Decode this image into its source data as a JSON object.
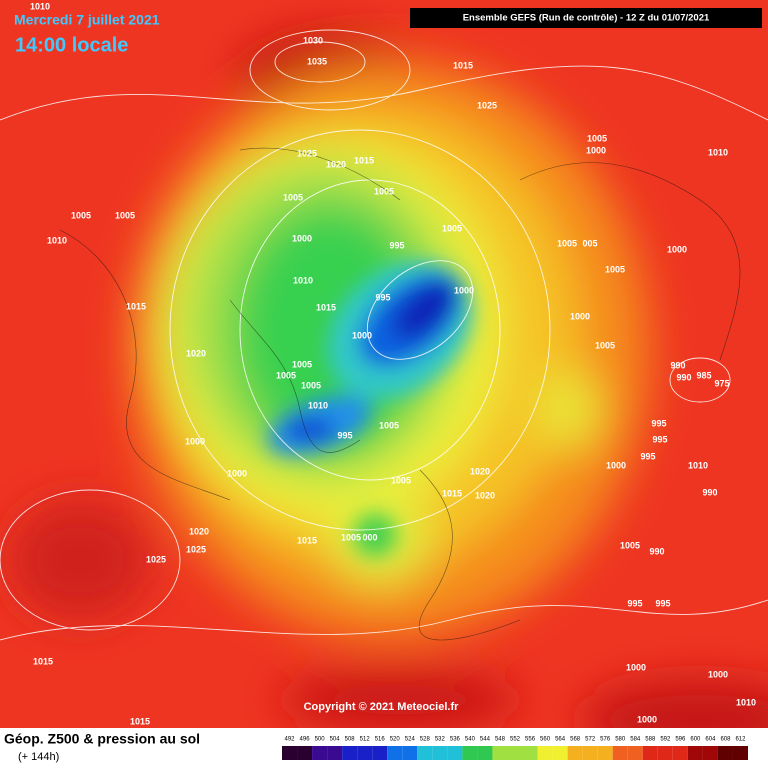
{
  "header": {
    "date": "Mercredi 7 juillet 2021",
    "time": "14:00 locale",
    "model": "Ensemble GEFS  (Run de contrôle)  -  12 Z du 01/07/2021"
  },
  "pressure_labels": [
    "1010",
    "1030",
    "1035",
    "1015",
    "1025",
    "1005",
    "1000",
    "1010",
    "1025",
    "1020",
    "1015",
    "1005",
    "1005",
    "1005",
    "1005",
    "1005",
    "1010",
    "1000",
    "995",
    "1005",
    "005",
    "1000",
    "1005",
    "1010",
    "1000",
    "995",
    "1015",
    "1015",
    "1000",
    "1000",
    "1005",
    "1020",
    "990",
    "990",
    "985",
    "975",
    "1005",
    "1005",
    "1005",
    "1010",
    "1005",
    "995",
    "995",
    "995",
    "995",
    "1000",
    "1000",
    "1010",
    "1020",
    "1000",
    "1005",
    "1015",
    "1020",
    "990",
    "1020",
    "1005",
    "000",
    "1015",
    "1025",
    "1005",
    "990",
    "1025",
    "995",
    "995",
    "1015",
    "1000",
    "1000",
    "1010",
    "1015",
    "1000"
  ],
  "copyright": "Copyright © 2021 Meteociel.fr",
  "legend": {
    "title": "Géop. Z500 & pression au sol",
    "subtitle": "(+ 144h)",
    "scale": [
      492,
      496,
      500,
      504,
      508,
      512,
      516,
      520,
      524,
      528,
      532,
      536,
      540,
      544,
      548,
      552,
      556,
      560,
      564,
      568,
      572,
      576,
      580,
      584,
      588,
      592,
      596,
      600,
      604,
      608,
      612
    ]
  }
}
